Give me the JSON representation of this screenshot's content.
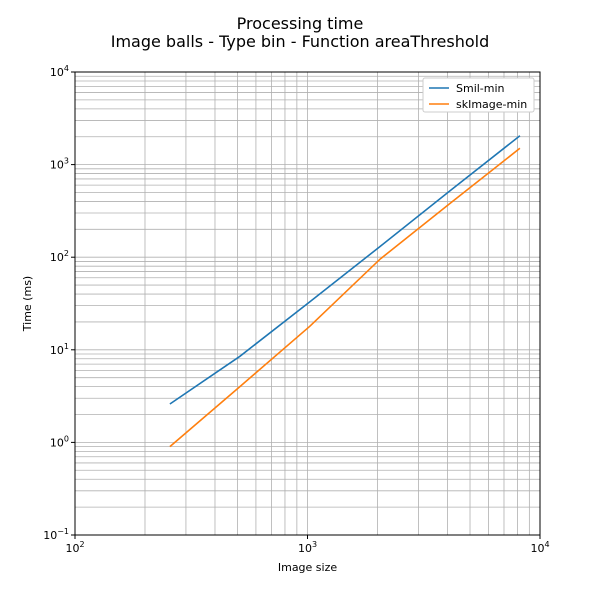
{
  "chart_data": {
    "type": "line",
    "title": "Processing time",
    "subtitle": "Image balls - Type bin - Function areaThreshold",
    "xlabel": "Image size",
    "ylabel": "Time (ms)",
    "xscale": "log",
    "yscale": "log",
    "xlim": [
      100,
      10000
    ],
    "ylim": [
      0.1,
      10000
    ],
    "grid": "major and minor",
    "legend_position": "top-right",
    "x_ticks": [
      {
        "value": 100,
        "base": "10",
        "exp": "2"
      },
      {
        "value": 1000,
        "base": "10",
        "exp": "3"
      },
      {
        "value": 10000,
        "base": "10",
        "exp": "4"
      }
    ],
    "y_ticks": [
      {
        "value": 0.1,
        "base": "10",
        "exp": "−1"
      },
      {
        "value": 1,
        "base": "10",
        "exp": "0"
      },
      {
        "value": 10,
        "base": "10",
        "exp": "1"
      },
      {
        "value": 100,
        "base": "10",
        "exp": "2"
      },
      {
        "value": 1000,
        "base": "10",
        "exp": "3"
      },
      {
        "value": 10000,
        "base": "10",
        "exp": "4"
      }
    ],
    "series": [
      {
        "name": "Smil-min",
        "color": "#1f77b4",
        "x": [
          256,
          512,
          1024,
          2048,
          4096,
          8192
        ],
        "y": [
          2.6,
          8.5,
          33,
          130,
          520,
          2050
        ]
      },
      {
        "name": "skImage-min",
        "color": "#ff7f0e",
        "x": [
          256,
          512,
          1024,
          2048,
          4096,
          8192
        ],
        "y": [
          0.9,
          4.0,
          18,
          95,
          380,
          1500
        ]
      }
    ]
  }
}
